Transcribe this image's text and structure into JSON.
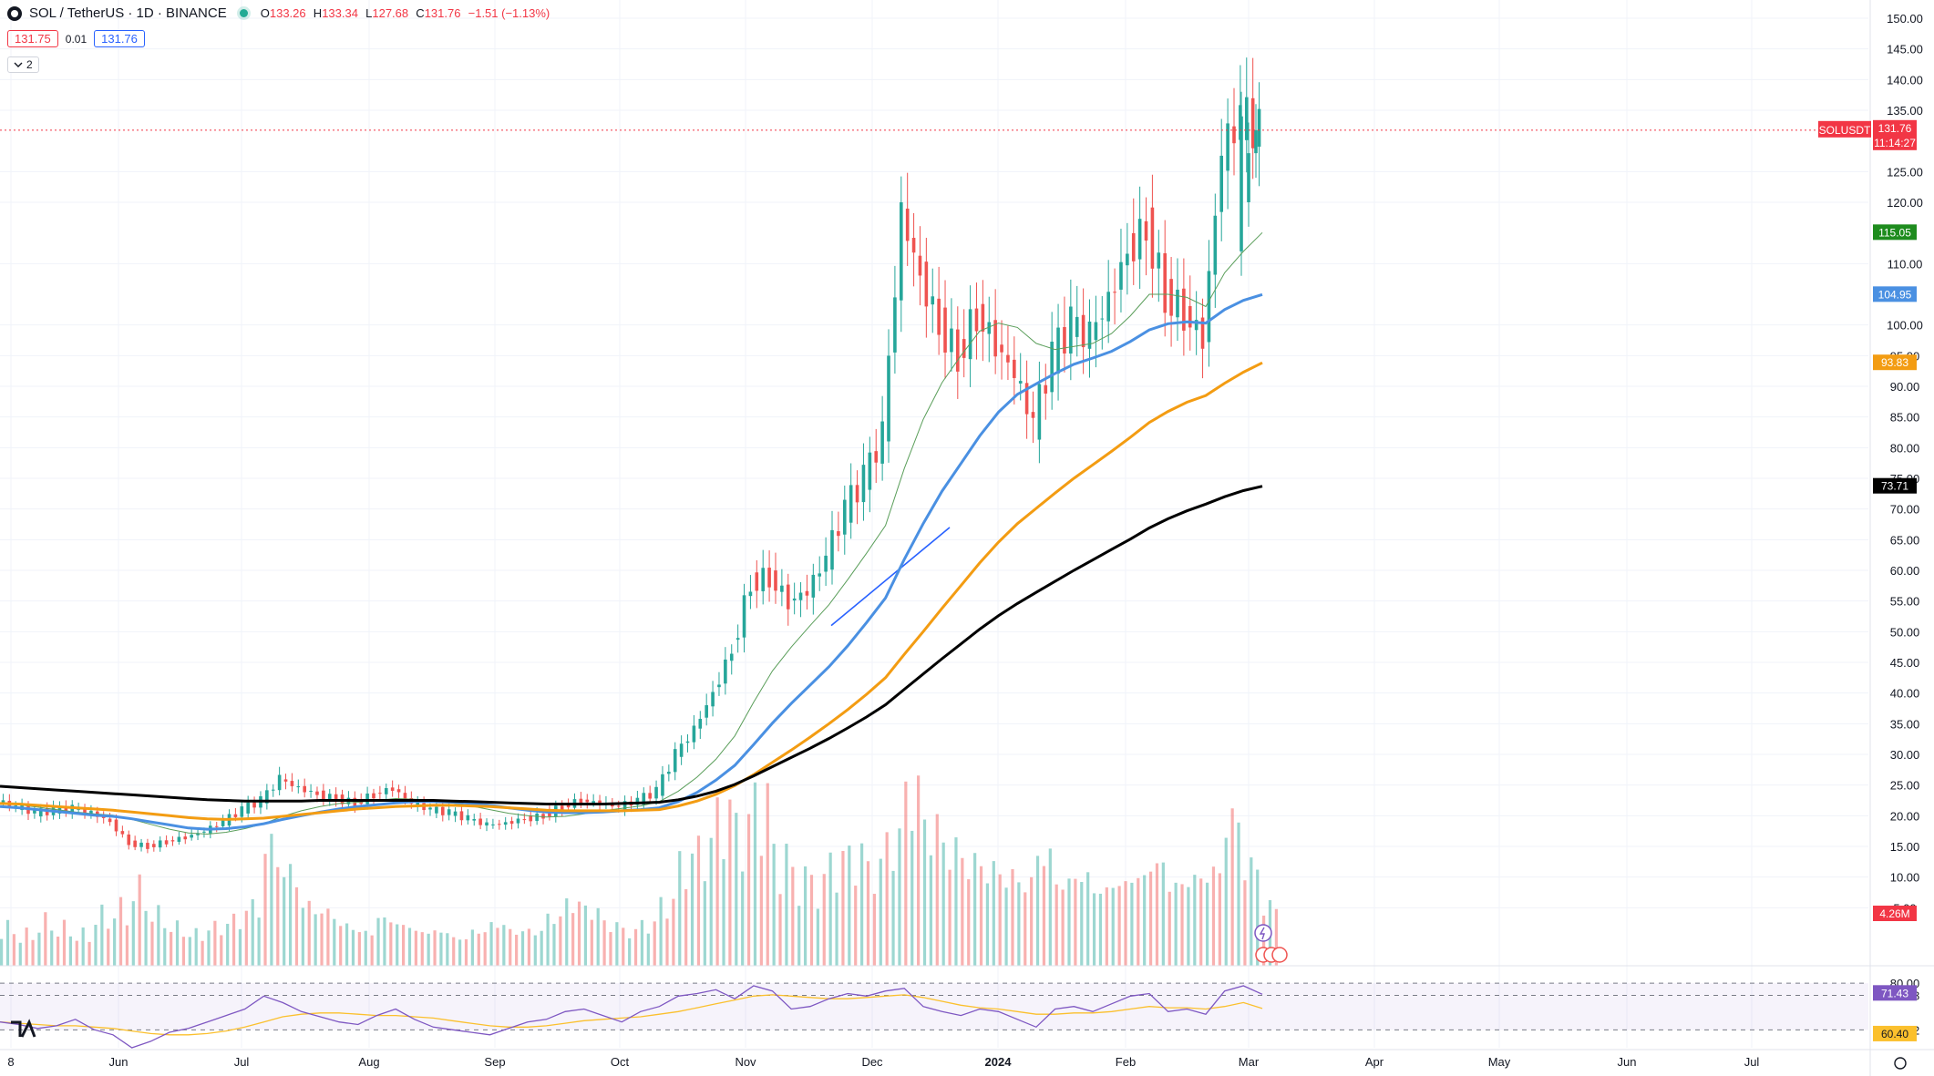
{
  "header": {
    "symbol": "SOL / TetherUS · 1D · BINANCE",
    "open_label": "O",
    "open": "133.26",
    "high_label": "H",
    "high": "133.34",
    "low_label": "L",
    "low": "127.68",
    "close_label": "C",
    "close": "131.76",
    "change": "−1.51 (−1.13%)",
    "sell_price": "131.75",
    "spread": "0.01",
    "buy_price": "131.76",
    "indicators_toggle": "2",
    "chevron_icon": "chevron-down-icon"
  },
  "chart_data": {
    "type": "candlestick",
    "symbol": "SOLUSDT",
    "price_axis": {
      "ticks": [
        "150.00",
        "145.00",
        "140.00",
        "135.00",
        "125.00",
        "120.00",
        "110.00",
        "100.00",
        "95.00",
        "90.00",
        "85.00",
        "80.00",
        "75.00",
        "70.00",
        "65.00",
        "60.00",
        "55.00",
        "50.00",
        "45.00",
        "40.00",
        "35.00",
        "30.00",
        "25.00",
        "20.00",
        "15.00",
        "10.00",
        "5.00"
      ],
      "ylim": [
        0,
        150
      ]
    },
    "time_axis": {
      "labels": [
        "8",
        "Jun",
        "Jul",
        "Aug",
        "Sep",
        "Oct",
        "Nov",
        "Dec",
        "2024",
        "Feb",
        "Mar",
        "Apr",
        "May",
        "Jun",
        "Jul"
      ]
    },
    "closes_weekly": [
      22.5,
      21.5,
      20.5,
      20.8,
      21.2,
      20.5,
      19.0,
      15.5,
      15.0,
      15.8,
      16.5,
      17.5,
      19.0,
      21.0,
      22.5,
      26.0,
      24.5,
      23.5,
      22.8,
      22.0,
      23.5,
      24.5,
      22.0,
      21.0,
      20.5,
      19.5,
      18.5,
      18.8,
      19.5,
      20.0,
      21.5,
      22.5,
      22.0,
      21.5,
      22.5,
      24.0,
      30.0,
      34.0,
      40.0,
      47.0,
      58.0,
      59.0,
      55.0,
      56.5,
      62.0,
      70.0,
      75.0,
      82.0,
      118.0,
      108.0,
      100.0,
      95.0,
      102.0,
      97.0,
      92.0,
      84.0,
      95.0,
      100.0,
      98.0,
      104.0,
      112.0,
      116.0,
      105.0,
      102.0,
      98.0,
      128.0,
      134.0,
      131.76
    ],
    "moving_averages": [
      {
        "color": "#5a9e5a",
        "last_value": "115.05",
        "values": [
          22.0,
          21.8,
          21.4,
          21.0,
          20.6,
          20.3,
          20.1,
          19.4,
          18.6,
          17.8,
          17.2,
          17.0,
          17.3,
          17.9,
          18.7,
          19.9,
          20.8,
          21.5,
          22.0,
          22.2,
          22.5,
          22.8,
          22.7,
          22.5,
          22.1,
          21.6,
          21.0,
          20.4,
          20.0,
          19.8,
          19.9,
          20.3,
          20.8,
          21.2,
          21.6,
          22.3,
          24.0,
          26.3,
          29.2,
          33.0,
          38.5,
          43.6,
          47.5,
          51.0,
          54.4,
          58.5,
          62.8,
          67.3,
          76.6,
          84.6,
          90.6,
          95.0,
          99.0,
          100.3,
          99.6,
          97.0,
          96.0,
          96.5,
          97.0,
          98.6,
          101.5,
          105.0,
          105.0,
          104.5,
          103.0,
          108.5,
          112.0,
          115.05
        ]
      },
      {
        "color": "#4a90e2",
        "last_value": "104.95",
        "values": [
          21.5,
          21.3,
          21.0,
          20.7,
          20.4,
          20.1,
          19.9,
          19.5,
          19.0,
          18.5,
          18.0,
          17.8,
          17.9,
          18.2,
          18.7,
          19.4,
          20.0,
          20.6,
          21.1,
          21.5,
          21.8,
          22.1,
          22.3,
          22.3,
          22.2,
          22.0,
          21.7,
          21.3,
          20.9,
          20.6,
          20.5,
          20.5,
          20.6,
          20.8,
          21.0,
          21.3,
          22.3,
          23.8,
          25.8,
          28.2,
          31.6,
          35.1,
          38.3,
          41.3,
          44.3,
          47.7,
          51.5,
          55.5,
          61.8,
          67.6,
          72.9,
          77.4,
          81.9,
          85.8,
          88.7,
          90.4,
          92.1,
          93.6,
          94.6,
          95.7,
          97.3,
          99.2,
          100.2,
          100.5,
          100.3,
          102.5,
          104.0,
          104.95
        ]
      },
      {
        "color": "#f39c12",
        "last_value": "93.83",
        "values": [
          22.0,
          21.9,
          21.7,
          21.5,
          21.3,
          21.1,
          20.9,
          20.6,
          20.3,
          20.0,
          19.7,
          19.5,
          19.4,
          19.5,
          19.6,
          19.9,
          20.2,
          20.5,
          20.8,
          21.1,
          21.3,
          21.5,
          21.6,
          21.7,
          21.7,
          21.6,
          21.5,
          21.3,
          21.1,
          20.9,
          20.8,
          20.8,
          20.8,
          20.8,
          20.9,
          21.0,
          21.6,
          22.4,
          23.5,
          24.9,
          26.7,
          28.7,
          30.7,
          32.8,
          35.0,
          37.3,
          39.8,
          42.5,
          46.3,
          50.0,
          53.8,
          57.5,
          61.2,
          64.6,
          67.6,
          70.1,
          72.6,
          75.0,
          77.2,
          79.4,
          81.7,
          84.1,
          85.9,
          87.4,
          88.5,
          90.5,
          92.3,
          93.83
        ]
      },
      {
        "color": "#000000",
        "last_value": "73.71",
        "values": [
          24.8,
          24.6,
          24.4,
          24.2,
          24.0,
          23.8,
          23.6,
          23.4,
          23.2,
          23.0,
          22.8,
          22.6,
          22.5,
          22.4,
          22.4,
          22.4,
          22.4,
          22.5,
          22.5,
          22.5,
          22.5,
          22.5,
          22.5,
          22.5,
          22.4,
          22.3,
          22.2,
          22.1,
          22.0,
          21.9,
          21.9,
          21.9,
          21.9,
          22.0,
          22.1,
          22.2,
          22.6,
          23.2,
          24.0,
          25.1,
          26.5,
          28.0,
          29.5,
          31.0,
          32.6,
          34.3,
          36.1,
          38.1,
          40.6,
          43.1,
          45.6,
          48.0,
          50.4,
          52.6,
          54.6,
          56.4,
          58.2,
          60.0,
          61.7,
          63.4,
          65.1,
          66.9,
          68.4,
          69.7,
          70.8,
          72.0,
          73.0,
          73.71
        ]
      }
    ],
    "volume": {
      "last_label": "4.26M",
      "bars_weekly": [
        6,
        5,
        7,
        6,
        5,
        8,
        9,
        12,
        8,
        6,
        5,
        6,
        7,
        9,
        18,
        14,
        9,
        8,
        6,
        5,
        7,
        6,
        5,
        5,
        4,
        5,
        6,
        5,
        5,
        7,
        9,
        8,
        6,
        5,
        6,
        9,
        15,
        17,
        22,
        20,
        24,
        16,
        13,
        12,
        15,
        16,
        14,
        18,
        25,
        20,
        17,
        15,
        14,
        13,
        12,
        16,
        12,
        13,
        11,
        12,
        13,
        15,
        12,
        13,
        14,
        22,
        15,
        9
      ]
    },
    "price_labels": [
      {
        "text": "SOLUSDT",
        "color": "#f23645"
      },
      {
        "text": "131.76",
        "color": "#f23645"
      },
      {
        "text": "11:14:27",
        "color": "#f23645"
      },
      {
        "text": "115.05",
        "color": "#1e8c1e"
      },
      {
        "text": "104.95",
        "color": "#4a90e2"
      },
      {
        "text": "93.83",
        "color": "#f39c12"
      },
      {
        "text": "73.71",
        "color": "#000000"
      },
      {
        "text": "4.26M",
        "color": "#f23645"
      }
    ],
    "rsi_panel": {
      "ticks": [
        "80.00",
        "70.58",
        "43.82"
      ],
      "labels": [
        {
          "text": "71.43",
          "color": "#7e57c2"
        },
        {
          "text": "60.40",
          "color": "#fbc02d"
        }
      ],
      "rsi_weekly": [
        50,
        48,
        45,
        47,
        52,
        44,
        40,
        30,
        35,
        42,
        45,
        50,
        55,
        60,
        70,
        65,
        58,
        54,
        50,
        48,
        55,
        60,
        52,
        46,
        44,
        42,
        40,
        45,
        50,
        52,
        58,
        60,
        55,
        50,
        58,
        62,
        70,
        72,
        75,
        68,
        78,
        74,
        60,
        62,
        68,
        72,
        70,
        74,
        76,
        62,
        58,
        55,
        60,
        58,
        52,
        46,
        60,
        62,
        58,
        64,
        70,
        72,
        58,
        60,
        56,
        74,
        78,
        71.43
      ],
      "ma_weekly": [
        50,
        49,
        48,
        47,
        47,
        46,
        45,
        43,
        41,
        40,
        40,
        41,
        43,
        46,
        50,
        54,
        56,
        57,
        57,
        56,
        55,
        55,
        54,
        53,
        51,
        49,
        47,
        46,
        46,
        47,
        49,
        51,
        52,
        53,
        54,
        56,
        58,
        61,
        64,
        67,
        70,
        71,
        70,
        69,
        68,
        68,
        69,
        70,
        71,
        69,
        66,
        63,
        61,
        60,
        58,
        56,
        56,
        57,
        57,
        58,
        60,
        62,
        61,
        61,
        60,
        62,
        65,
        60.4
      ]
    }
  }
}
